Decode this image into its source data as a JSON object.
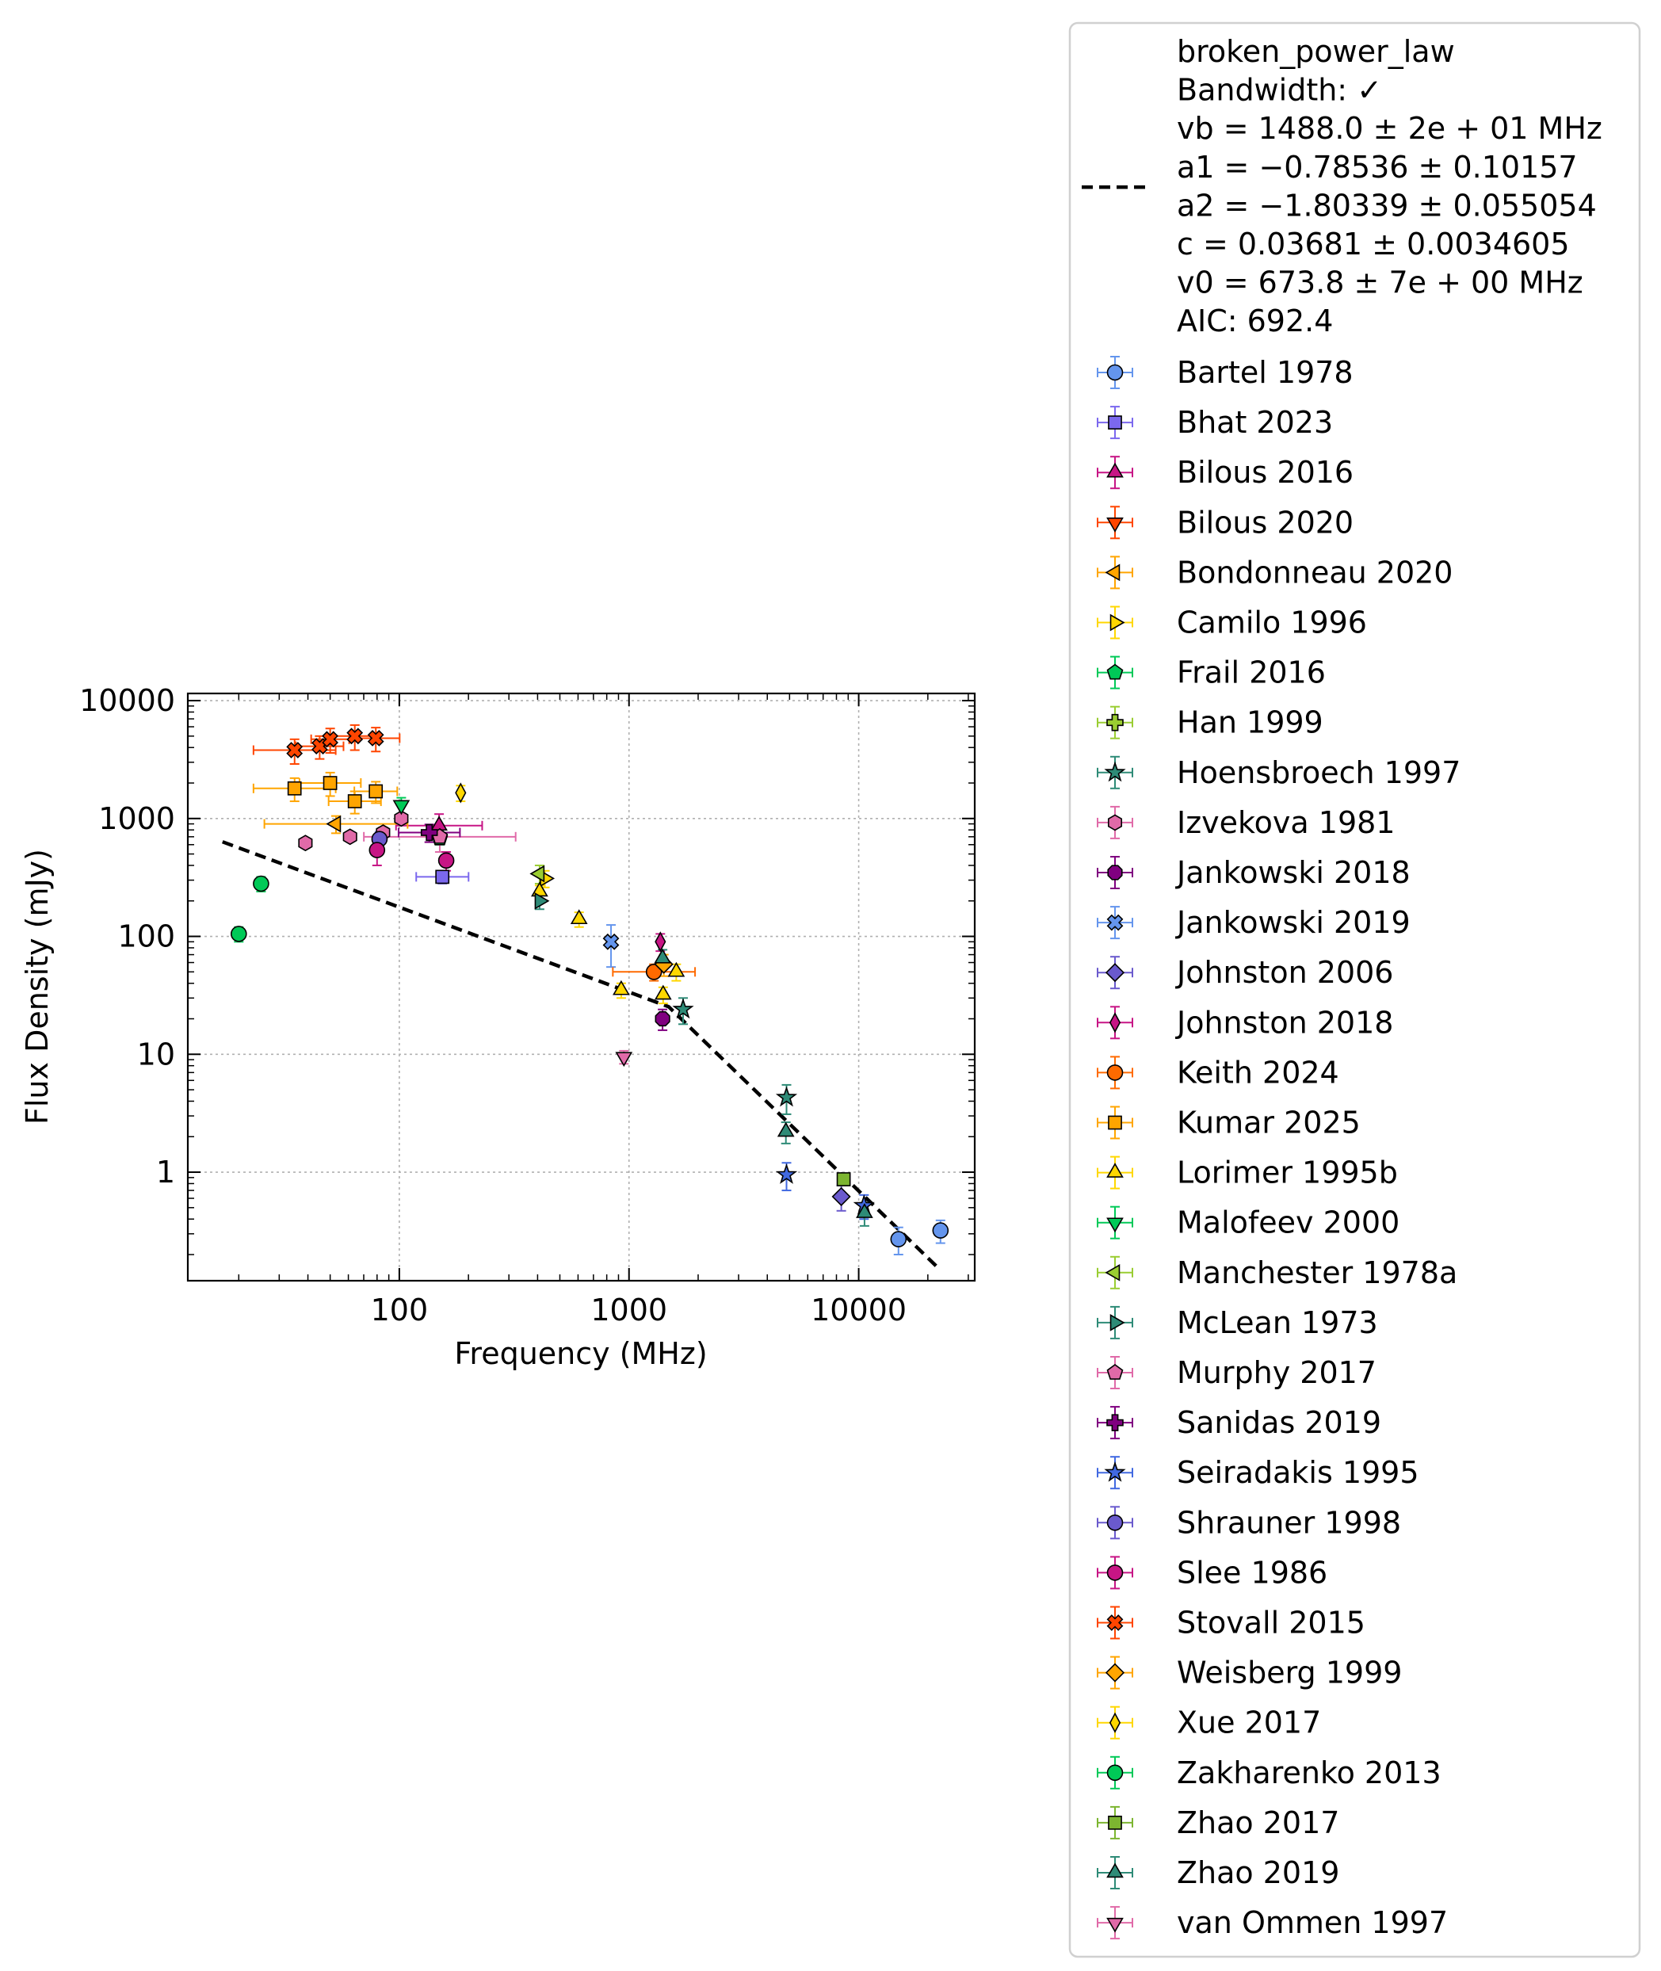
{
  "chart_data": {
    "type": "scatter",
    "xlabel": "Frequency (MHz)",
    "ylabel": "Flux Density (mJy)",
    "xscale": "log",
    "yscale": "log",
    "xlim": [
      12,
      32000
    ],
    "ylim": [
      0.12,
      11500
    ],
    "xticks": [
      100,
      1000,
      10000
    ],
    "yticks": [
      1,
      10,
      100,
      1000,
      10000
    ],
    "grid": true,
    "legend_position": "right, outside axes",
    "fit": {
      "name": "broken_power_law",
      "style": "dashed",
      "color": "#000000",
      "x": [
        17,
        1488,
        22500
      ],
      "y": [
        634,
        25.3,
        0.15
      ],
      "label_lines": [
        "broken_power_law",
        "Bandwidth: ✓",
        "vb = 1488.0 ± 2e + 01 MHz",
        "a1 = −0.78536 ± 0.10157",
        "a2 = −1.80339 ± 0.055054",
        "c = 0.03681 ± 0.0034605",
        "v0 = 673.8 ± 7e + 00 MHz",
        "AIC: 692.4"
      ]
    },
    "series": [
      {
        "name": "Bartel 1978",
        "marker": "circle",
        "color": "#6495ed",
        "points": [
          [
            14900,
            0.27,
            0.07,
            0
          ],
          [
            22700,
            0.32,
            0.07,
            0
          ]
        ]
      },
      {
        "name": "Bhat 2023",
        "marker": "square",
        "color": "#7b68ee",
        "points": [
          [
            154,
            320,
            40,
            0.1
          ]
        ]
      },
      {
        "name": "Bilous 2016",
        "marker": "triangle-up",
        "color": "#c71585",
        "points": [
          [
            149,
            870,
            220,
            0.18
          ]
        ]
      },
      {
        "name": "Bilous 2020",
        "marker": "triangle-down",
        "color": "#ff4500",
        "points": []
      },
      {
        "name": "Bondonneau 2020",
        "marker": "triangle-left",
        "color": "#ffa500",
        "points": [
          [
            53,
            900,
            150,
            0.35
          ]
        ]
      },
      {
        "name": "Camilo 1996",
        "marker": "triangle-right",
        "color": "#ffd700",
        "points": [
          [
            430,
            310,
            50,
            0
          ]
        ]
      },
      {
        "name": "Frail 2016",
        "marker": "pentagon",
        "color": "#00c957",
        "points": [
          [
            150,
            680,
            80,
            0
          ]
        ]
      },
      {
        "name": "Han 1999",
        "marker": "plus",
        "color": "#9acd32",
        "points": []
      },
      {
        "name": "Hoensbroech 1997",
        "marker": "star",
        "color": "#2e8b77",
        "points": [
          [
            1720,
            24,
            6,
            0
          ],
          [
            4850,
            4.3,
            1.2,
            0
          ]
        ]
      },
      {
        "name": "Izvekova 1981",
        "marker": "hexagon",
        "color": "#e06aa8",
        "points": [
          [
            39,
            620,
            60,
            0
          ],
          [
            61,
            700,
            60,
            0
          ],
          [
            85,
            760,
            80,
            0
          ],
          [
            102,
            1000,
            100,
            0
          ]
        ]
      },
      {
        "name": "Jankowski 2018",
        "marker": "octagon",
        "color": "#800080",
        "points": [
          [
            1400,
            20,
            4,
            0
          ]
        ]
      },
      {
        "name": "Jankowski 2019",
        "marker": "x",
        "color": "#6495ed",
        "points": [
          [
            835,
            90,
            35,
            0
          ]
        ]
      },
      {
        "name": "Johnston 2006",
        "marker": "diamond",
        "color": "#6a5acd",
        "points": [
          [
            8400,
            0.62,
            0.15,
            0
          ]
        ]
      },
      {
        "name": "Johnston 2018",
        "marker": "thin-diamond",
        "color": "#c71585",
        "points": [
          [
            1369,
            90,
            15,
            0
          ]
        ]
      },
      {
        "name": "Keith 2024",
        "marker": "circle",
        "color": "#ff6a00",
        "points": [
          [
            1284,
            50,
            8,
            0.17
          ]
        ]
      },
      {
        "name": "Kumar 2025",
        "marker": "square",
        "color": "#ffa500",
        "points": [
          [
            35,
            1800,
            400,
            0.17
          ],
          [
            50,
            2000,
            450,
            0.12
          ],
          [
            64,
            1400,
            300,
            0.1
          ],
          [
            79,
            1700,
            350,
            0.08
          ]
        ]
      },
      {
        "name": "Lorimer 1995b",
        "marker": "triangle-up",
        "color": "#ffd700",
        "points": [
          [
            408,
            240,
            30,
            0
          ],
          [
            606,
            140,
            20,
            0
          ],
          [
            925,
            35,
            5,
            0
          ],
          [
            1408,
            32,
            5,
            0
          ],
          [
            1606,
            50,
            8,
            0
          ]
        ]
      },
      {
        "name": "Malofeev 2000",
        "marker": "triangle-down",
        "color": "#00c957",
        "points": [
          [
            102,
            1300,
            200,
            0
          ]
        ]
      },
      {
        "name": "Manchester 1978a",
        "marker": "triangle-left",
        "color": "#9acd32",
        "points": [
          [
            408,
            340,
            60,
            0
          ]
        ]
      },
      {
        "name": "McLean 1973",
        "marker": "triangle-right",
        "color": "#2e8b77",
        "points": [
          [
            408,
            200,
            30,
            0
          ]
        ]
      },
      {
        "name": "Murphy 2017",
        "marker": "pentagon",
        "color": "#e06aa8",
        "points": [
          [
            150,
            700,
            180,
            0.38
          ]
        ]
      },
      {
        "name": "Sanidas 2019",
        "marker": "plus",
        "color": "#800080",
        "points": [
          [
            135,
            760,
            130,
            0.12
          ]
        ]
      },
      {
        "name": "Seiradakis 1995",
        "marker": "star",
        "color": "#4169e1",
        "points": [
          [
            4850,
            0.95,
            0.25,
            0
          ],
          [
            10550,
            0.52,
            0.12,
            0
          ]
        ]
      },
      {
        "name": "Shrauner 1998",
        "marker": "circle",
        "color": "#6a5acd",
        "points": [
          [
            82,
            670,
            100,
            0
          ]
        ]
      },
      {
        "name": "Slee 1986",
        "marker": "circle",
        "color": "#c71585",
        "points": [
          [
            80,
            540,
            140,
            0
          ],
          [
            160,
            440,
            80,
            0
          ]
        ]
      },
      {
        "name": "Stovall 2015",
        "marker": "x",
        "color": "#ff4500",
        "points": [
          [
            35,
            3800,
            900,
            0.17
          ],
          [
            45,
            4100,
            900,
            0.09
          ],
          [
            50,
            4700,
            1100,
            0.07
          ],
          [
            64,
            5000,
            1200,
            0.08
          ],
          [
            79,
            4800,
            1100,
            0.09
          ]
        ]
      },
      {
        "name": "Weisberg 1999",
        "marker": "diamond",
        "color": "#ffa500",
        "points": [
          [
            1418,
            58,
            12,
            0
          ]
        ]
      },
      {
        "name": "Xue 2017",
        "marker": "thin-diamond",
        "color": "#ffd700",
        "points": [
          [
            185,
            1650,
            250,
            0
          ]
        ]
      },
      {
        "name": "Zakharenko 2013",
        "marker": "circle",
        "color": "#00c957",
        "points": [
          [
            20,
            105,
            15,
            0
          ],
          [
            25,
            280,
            40,
            0
          ]
        ]
      },
      {
        "name": "Zhao 2017",
        "marker": "square",
        "color": "#7cb530",
        "points": [
          [
            8600,
            0.87,
            0.1,
            0
          ]
        ]
      },
      {
        "name": "Zhao 2019",
        "marker": "triangle-up",
        "color": "#2e8b77",
        "points": [
          [
            1400,
            65,
            12,
            0
          ],
          [
            4820,
            2.2,
            0.45,
            0
          ],
          [
            10600,
            0.45,
            0.1,
            0
          ]
        ]
      },
      {
        "name": "van Ommen 1997",
        "marker": "triangle-down",
        "color": "#e06aa8",
        "points": [
          [
            950,
            9.5,
            1.2,
            0
          ]
        ]
      }
    ]
  }
}
